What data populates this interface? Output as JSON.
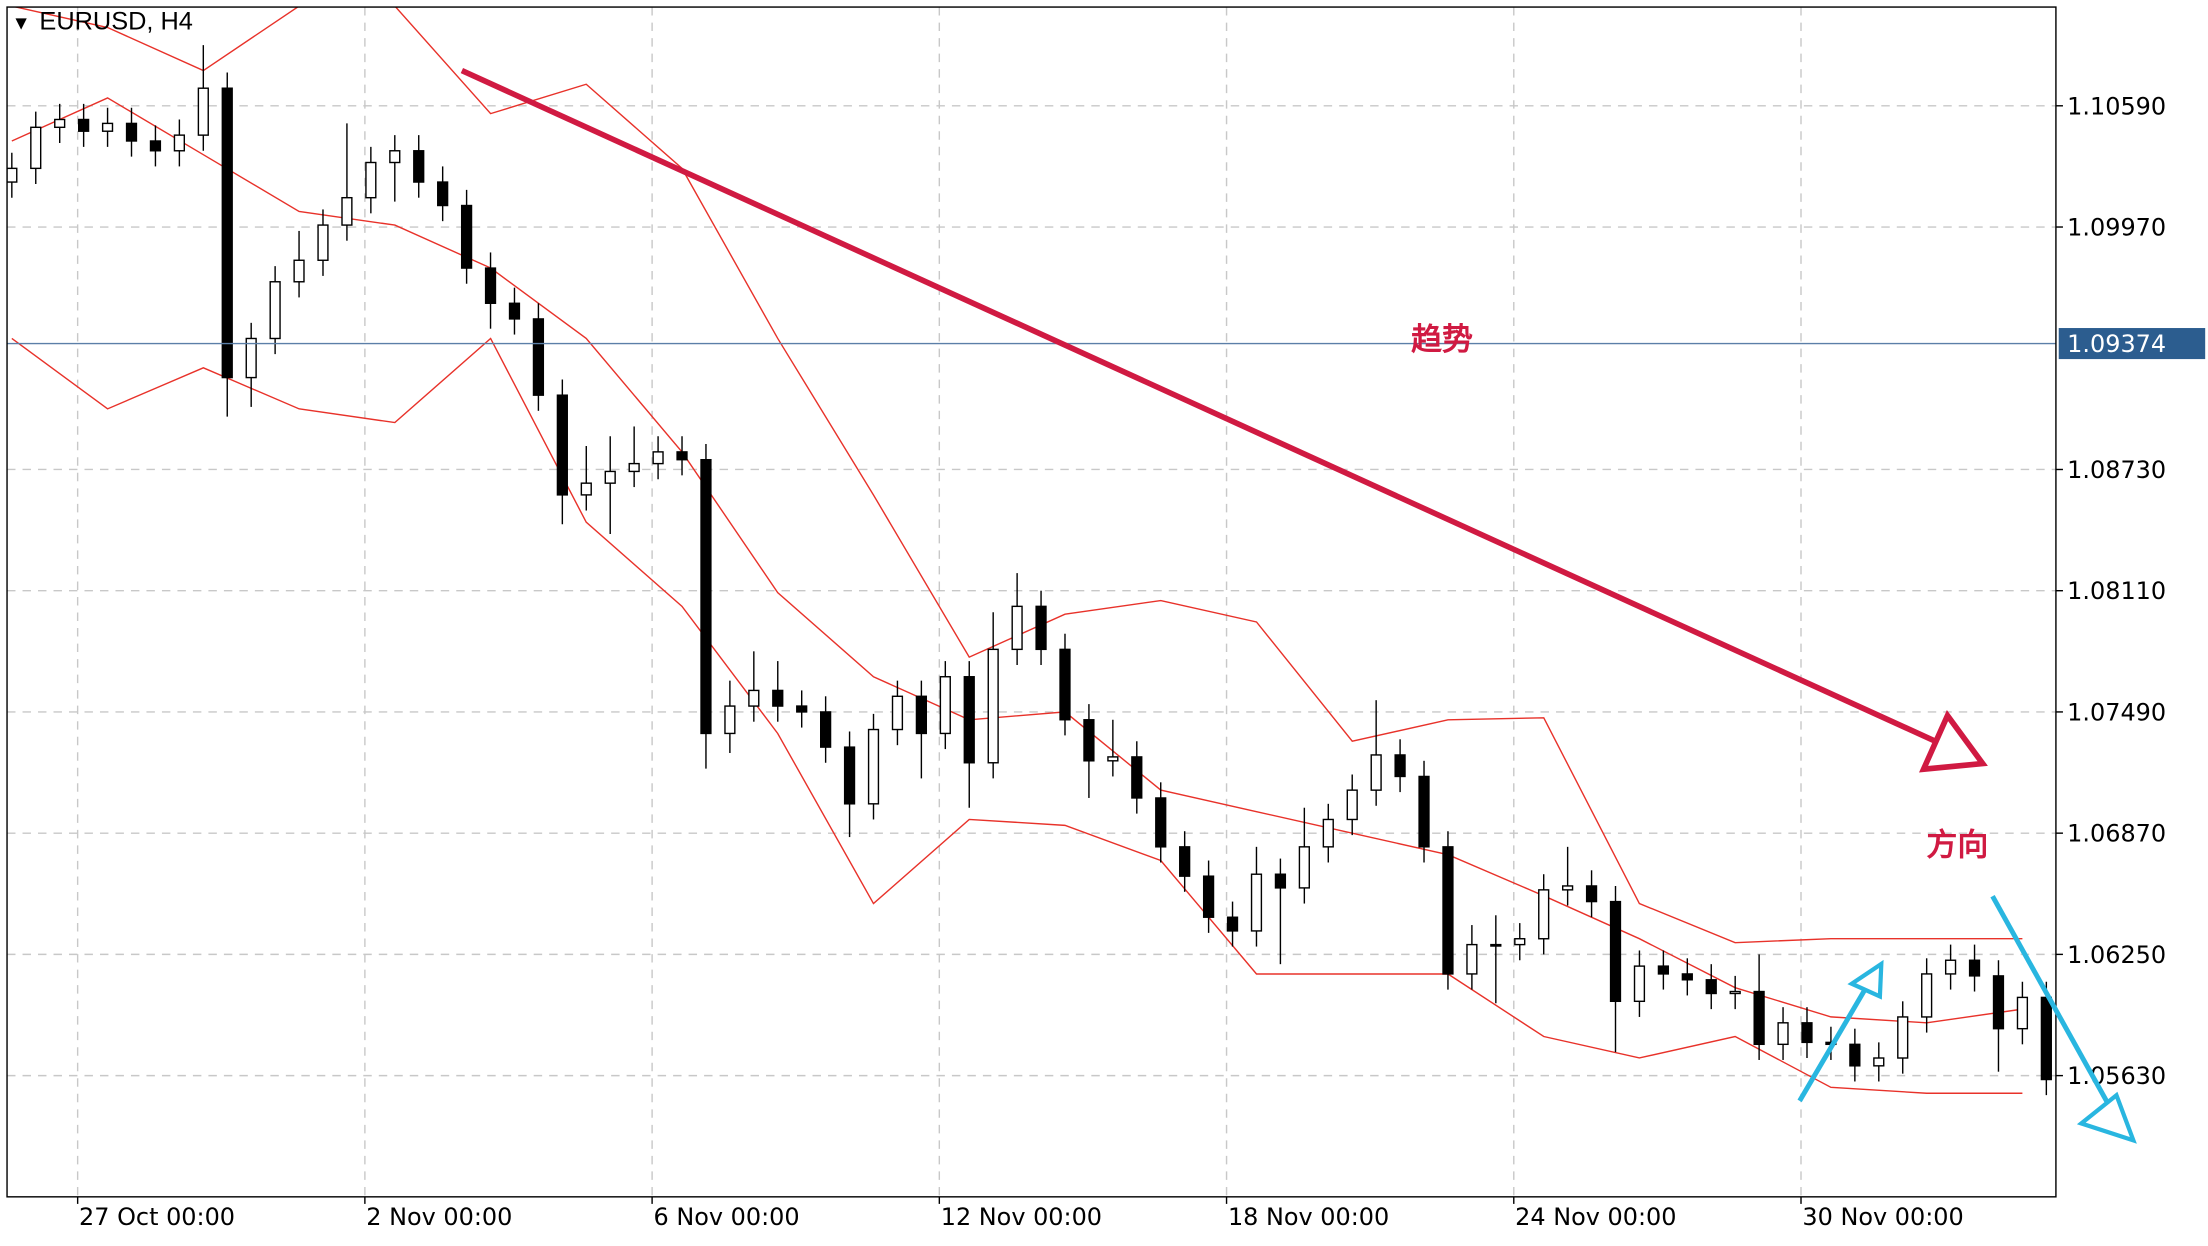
{
  "chart_data": {
    "type": "candlestick",
    "title": "EURUSD, H4",
    "up_color": "#ffffff",
    "down_color": "#000000",
    "x": [
      0,
      1,
      2,
      3,
      4,
      5,
      6,
      7,
      8,
      9,
      10,
      11,
      12,
      13,
      14,
      15,
      16,
      17,
      18,
      19,
      20,
      21,
      22,
      23,
      24,
      25,
      26,
      27,
      28,
      29,
      30,
      31,
      32,
      33,
      34,
      35,
      36,
      37,
      38,
      39,
      40,
      41,
      42,
      43,
      44,
      45,
      46,
      47,
      48,
      49,
      50,
      51,
      52,
      53,
      54,
      55,
      56,
      57,
      58,
      59,
      60,
      61,
      62,
      63,
      64,
      65,
      66,
      67,
      68,
      69,
      70,
      71,
      72,
      73,
      74,
      75,
      76,
      77,
      78,
      79,
      80,
      81,
      82,
      83,
      84,
      85
    ],
    "open": [
      1.102,
      1.1027,
      1.1048,
      1.1052,
      1.1046,
      1.105,
      1.1041,
      1.1036,
      1.1044,
      1.1068,
      1.092,
      1.094,
      1.0969,
      1.098,
      1.0998,
      1.1012,
      1.103,
      1.1036,
      1.102,
      1.1008,
      1.0976,
      1.0958,
      1.095,
      1.0911,
      1.086,
      1.0866,
      1.0872,
      1.0876,
      1.0882,
      1.0878,
      1.0738,
      1.0752,
      1.076,
      1.0752,
      1.0749,
      1.0731,
      1.0702,
      1.074,
      1.0757,
      1.0738,
      1.0767,
      1.0723,
      1.0781,
      1.0803,
      1.0781,
      1.0745,
      1.0724,
      1.0726,
      1.0705,
      1.068,
      1.0665,
      1.0644,
      1.0637,
      1.0666,
      1.0659,
      1.068,
      1.0694,
      1.0709,
      1.0727,
      1.0716,
      1.068,
      1.0615,
      1.063,
      1.063,
      1.0633,
      1.0658,
      1.066,
      1.0652,
      1.0601,
      1.0619,
      1.0615,
      1.0612,
      1.0605,
      1.0606,
      1.0579,
      1.059,
      1.058,
      1.0579,
      1.0568,
      1.0572,
      1.0593,
      1.0615,
      1.0622,
      1.0614,
      1.0587,
      1.0603
    ],
    "high": [
      1.1035,
      1.1056,
      1.106,
      1.106,
      1.1058,
      1.1058,
      1.1049,
      1.1052,
      1.109,
      1.1076,
      1.0948,
      1.0977,
      1.0995,
      1.1006,
      1.105,
      1.1038,
      1.1044,
      1.1044,
      1.1028,
      1.1016,
      1.0984,
      1.0966,
      1.0958,
      1.0919,
      1.0885,
      1.089,
      1.0895,
      1.089,
      1.089,
      1.0886,
      1.0765,
      1.078,
      1.0775,
      1.076,
      1.0757,
      1.0739,
      1.0748,
      1.0765,
      1.0765,
      1.0775,
      1.0775,
      1.08,
      1.082,
      1.0811,
      1.0789,
      1.0753,
      1.0745,
      1.0734,
      1.0713,
      1.0688,
      1.0673,
      1.0652,
      1.068,
      1.0674,
      1.07,
      1.0702,
      1.0717,
      1.0755,
      1.0735,
      1.0724,
      1.0688,
      1.064,
      1.0645,
      1.0641,
      1.0666,
      1.068,
      1.0668,
      1.066,
      1.0627,
      1.0627,
      1.0623,
      1.062,
      1.0614,
      1.0625,
      1.0598,
      1.0598,
      1.0588,
      1.0587,
      1.058,
      1.0601,
      1.0623,
      1.063,
      1.063,
      1.0622,
      1.0611,
      1.0611
    ],
    "low": [
      1.1012,
      1.1019,
      1.104,
      1.1038,
      1.1038,
      1.1033,
      1.1028,
      1.1028,
      1.1036,
      1.09,
      1.0905,
      1.0932,
      1.0961,
      1.0972,
      1.099,
      1.1004,
      1.101,
      1.1012,
      1.1,
      1.0968,
      1.0945,
      1.0942,
      1.0903,
      1.0845,
      1.0852,
      1.084,
      1.0864,
      1.0868,
      1.087,
      1.072,
      1.0728,
      1.0744,
      1.0744,
      1.0741,
      1.0723,
      1.0685,
      1.0694,
      1.0732,
      1.0715,
      1.073,
      1.07,
      1.0715,
      1.0773,
      1.0773,
      1.0737,
      1.0705,
      1.0716,
      1.0697,
      1.0672,
      1.0657,
      1.0636,
      1.0629,
      1.0629,
      1.062,
      1.0651,
      1.0672,
      1.0686,
      1.0701,
      1.0708,
      1.0672,
      1.0607,
      1.0607,
      1.06,
      1.0622,
      1.0625,
      1.065,
      1.0644,
      1.0575,
      1.0593,
      1.0607,
      1.0604,
      1.0597,
      1.0597,
      1.0571,
      1.0571,
      1.0572,
      1.0571,
      1.056,
      1.056,
      1.0564,
      1.0585,
      1.0607,
      1.0606,
      1.0565,
      1.0579,
      1.0553
    ],
    "close": [
      1.1027,
      1.1048,
      1.1052,
      1.1046,
      1.105,
      1.1041,
      1.1036,
      1.1044,
      1.1068,
      1.092,
      1.094,
      1.0969,
      1.098,
      1.0998,
      1.1012,
      1.103,
      1.1036,
      1.102,
      1.1008,
      1.0976,
      1.0958,
      1.095,
      1.0911,
      1.086,
      1.0866,
      1.0872,
      1.0876,
      1.0882,
      1.0878,
      1.0738,
      1.0752,
      1.076,
      1.0752,
      1.0749,
      1.0731,
      1.0702,
      1.074,
      1.0757,
      1.0738,
      1.0767,
      1.0723,
      1.0781,
      1.0803,
      1.0781,
      1.0745,
      1.0724,
      1.0726,
      1.0705,
      1.068,
      1.0665,
      1.0644,
      1.0637,
      1.0666,
      1.0659,
      1.068,
      1.0694,
      1.0709,
      1.0727,
      1.0716,
      1.068,
      1.0615,
      1.063,
      1.063,
      1.0633,
      1.0658,
      1.066,
      1.0652,
      1.0601,
      1.0619,
      1.0615,
      1.0612,
      1.0605,
      1.0606,
      1.0579,
      1.059,
      1.058,
      1.0579,
      1.0568,
      1.0572,
      1.0593,
      1.0615,
      1.0622,
      1.0614,
      1.0587,
      1.0603,
      1.0561
    ],
    "bands": {
      "color": "#e8322a",
      "x": [
        0,
        4,
        8,
        12,
        16,
        20,
        24,
        28,
        32,
        36,
        40,
        44,
        48,
        52,
        56,
        60,
        64,
        68,
        72,
        76,
        80,
        84
      ],
      "upper": [
        1.111,
        1.1099,
        1.1077,
        1.111,
        1.111,
        1.1055,
        1.107,
        1.1027,
        1.094,
        1.086,
        1.0777,
        1.0799,
        1.0806,
        1.0795,
        1.0734,
        1.0745,
        1.0746,
        1.0651,
        1.0631,
        1.0633,
        1.0633,
        1.0633
      ],
      "middle": [
        1.1041,
        1.1063,
        1.1034,
        1.1005,
        1.0998,
        1.0976,
        1.094,
        1.0882,
        1.081,
        1.0767,
        1.0745,
        1.0749,
        1.0709,
        1.0698,
        1.0687,
        1.0676,
        1.0655,
        1.0633,
        1.0608,
        1.0593,
        1.059,
        1.0597
      ],
      "lower": [
        1.094,
        1.0904,
        1.0925,
        1.0904,
        1.0897,
        1.094,
        1.0846,
        1.0803,
        1.0738,
        1.0651,
        1.0694,
        1.0691,
        1.0673,
        1.0615,
        1.0615,
        1.0615,
        1.0583,
        1.0572,
        1.0583,
        1.0557,
        1.0554,
        1.0554
      ]
    },
    "current_price": 1.09374,
    "current_price_color": "#2c5d8f",
    "xlim": [
      -0.2,
      85.4
    ],
    "ylim": [
      1.0501,
      1.11095
    ],
    "xticks": [
      {
        "value": 2.75,
        "label": "27 Oct 00:00"
      },
      {
        "value": 14.75,
        "label": "2 Nov 00:00"
      },
      {
        "value": 26.75,
        "label": "6 Nov 00:00"
      },
      {
        "value": 38.75,
        "label": "12 Nov 00:00"
      },
      {
        "value": 50.75,
        "label": "18 Nov 00:00"
      },
      {
        "value": 62.75,
        "label": "24 Nov 00:00"
      },
      {
        "value": 74.75,
        "label": "30 Nov 00:00"
      }
    ],
    "yticks": [
      {
        "value": 1.1059,
        "label": "1.10590"
      },
      {
        "value": 1.0997,
        "label": "1.09970"
      },
      {
        "value": 1.0873,
        "label": "1.08730"
      },
      {
        "value": 1.0811,
        "label": "1.08110"
      },
      {
        "value": 1.0749,
        "label": "1.07490"
      },
      {
        "value": 1.0687,
        "label": "1.06870"
      },
      {
        "value": 1.0625,
        "label": "1.06250"
      },
      {
        "value": 1.0563,
        "label": "1.05630"
      }
    ],
    "grid": true,
    "annotations": [
      "趋势",
      "方向"
    ]
  }
}
